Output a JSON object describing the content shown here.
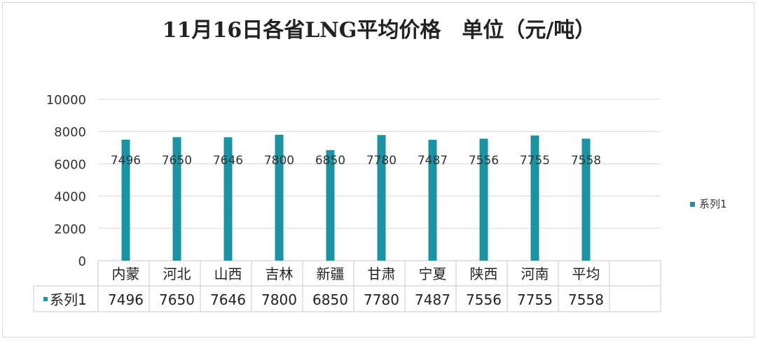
{
  "chart_data": {
    "type": "bar",
    "title": "11月16日各省LNG平均价格　单位（元/吨）",
    "categories": [
      "内蒙",
      "河北",
      "山西",
      "吉林",
      "新疆",
      "甘肃",
      "宁夏",
      "陕西",
      "河南",
      "平均"
    ],
    "series": [
      {
        "name": "系列1",
        "values": [
          7496,
          7650,
          7646,
          7800,
          6850,
          7780,
          7487,
          7556,
          7755,
          7558
        ]
      }
    ],
    "ylim": [
      0,
      10000
    ],
    "yticks": [
      0,
      2000,
      4000,
      6000,
      8000,
      10000
    ],
    "grid": true,
    "legend": "right",
    "data_table": true,
    "bar_color": "#1b93a3"
  }
}
